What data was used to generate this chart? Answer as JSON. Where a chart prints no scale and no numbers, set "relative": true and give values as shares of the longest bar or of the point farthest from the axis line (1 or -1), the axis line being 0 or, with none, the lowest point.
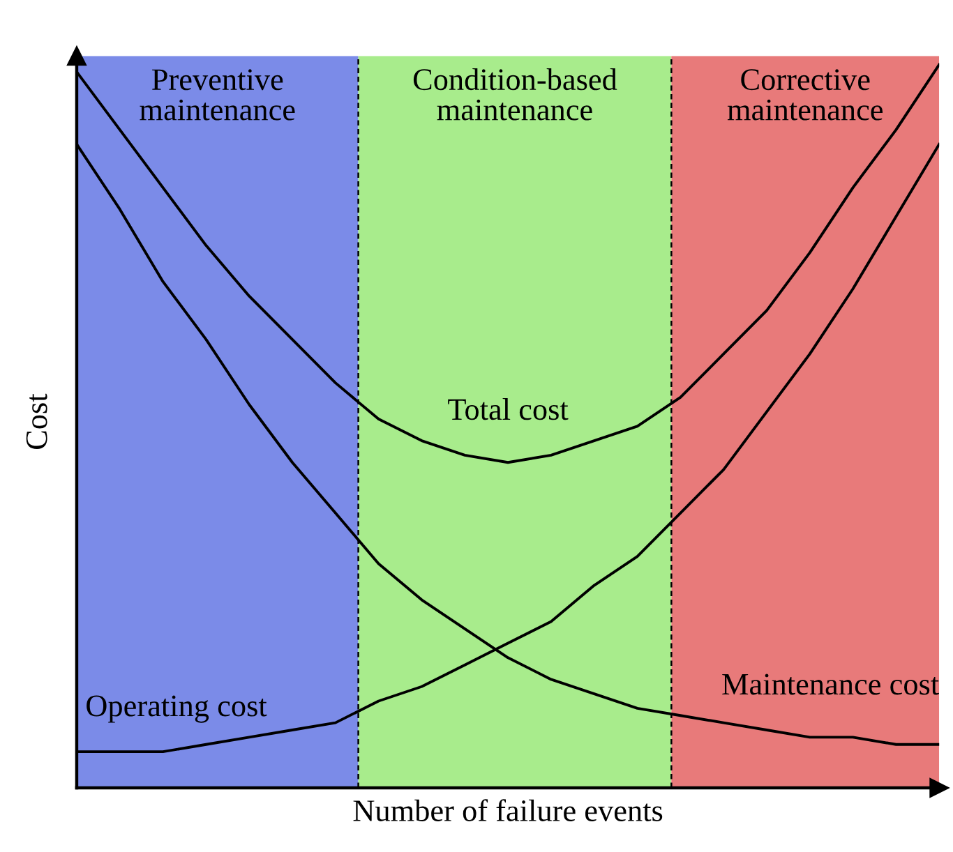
{
  "chart_data": {
    "type": "line",
    "relative": true,
    "xlabel": "Number of failure events",
    "ylabel": "Cost",
    "categories": [
      null,
      null,
      null,
      null,
      null,
      null,
      null,
      null,
      null,
      null,
      null,
      null,
      null,
      null,
      null,
      null,
      null,
      null,
      null,
      null,
      null
    ],
    "series": [
      {
        "name": "Total cost",
        "color": "#000000",
        "values": [
          0.99,
          0.91,
          0.83,
          0.75,
          0.68,
          0.62,
          0.56,
          0.51,
          0.48,
          0.46,
          0.45,
          0.46,
          0.48,
          0.5,
          0.54,
          0.6,
          0.66,
          0.74,
          0.83,
          0.91,
          1
        ]
      },
      {
        "name": "Maintenance cost",
        "color": "#000000",
        "values": [
          0.89,
          0.8,
          0.7,
          0.62,
          0.53,
          0.45,
          0.38,
          0.31,
          0.26,
          0.22,
          0.18,
          0.15,
          0.13,
          0.11,
          0.1,
          0.09,
          0.08,
          0.07,
          0.07,
          0.06,
          0.06
        ]
      },
      {
        "name": "Operating cost",
        "color": "#000000",
        "values": [
          0.05,
          0.05,
          0.05,
          0.06,
          0.07,
          0.08,
          0.09,
          0.12,
          0.14,
          0.17,
          0.2,
          0.23,
          0.28,
          0.32,
          0.38,
          0.44,
          0.52,
          0.6,
          0.69,
          0.79,
          0.89
        ]
      }
    ],
    "annotations": [
      "Preventive\nmaintenance",
      "Condition-based\nmaintenance",
      "Corrective\nmaintenance"
    ],
    "marker": "none",
    "line_style": "solid"
  }
}
